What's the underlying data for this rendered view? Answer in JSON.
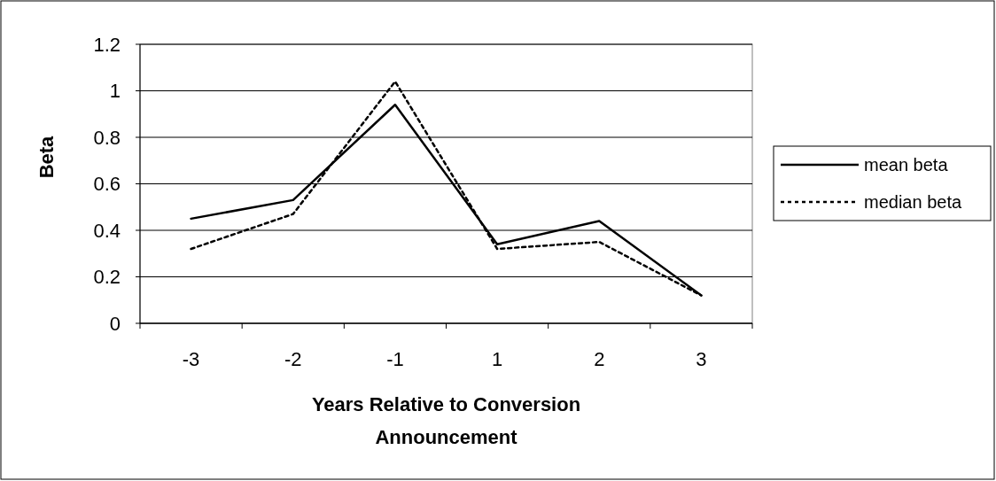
{
  "chart_data": {
    "type": "line",
    "xlabel": "Years Relative to Conversion Announcement",
    "ylabel": "Beta",
    "categories": [
      "-3",
      "-2",
      "-1",
      "1",
      "2",
      "3"
    ],
    "series": [
      {
        "name": "mean beta",
        "color": "#000000",
        "line_style": "solid",
        "values": [
          0.45,
          0.53,
          0.94,
          0.34,
          0.44,
          0.12
        ]
      },
      {
        "name": "median beta",
        "color": "#000000",
        "line_style": "dotted",
        "values": [
          0.32,
          0.47,
          1.04,
          0.32,
          0.35,
          0.12
        ]
      }
    ],
    "ylim": [
      0,
      1.2
    ],
    "yticks": [
      0,
      0.2,
      0.4,
      0.6,
      0.8,
      1,
      1.2
    ],
    "grid": "y",
    "legend": "right",
    "marker": "none"
  }
}
